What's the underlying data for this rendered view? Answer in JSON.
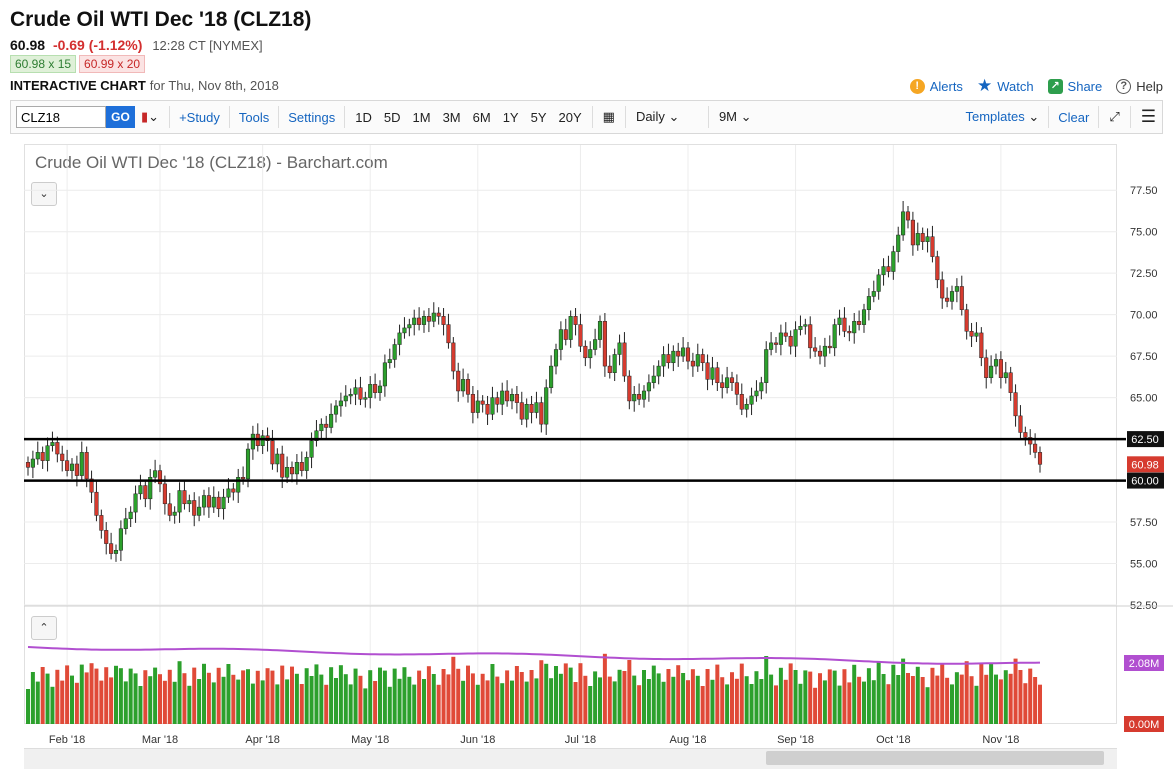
{
  "header": {
    "title": "Crude Oil WTI Dec '18 (CLZ18)",
    "last": "60.98",
    "change": "-0.69 (-1.12%)",
    "time": "12:28 CT [NYMEX]",
    "bid": "60.98 x 15",
    "ask": "60.99 x 20",
    "interactive_label": "INTERACTIVE CHART",
    "interactive_date": "for Thu, Nov 8th, 2018",
    "links": {
      "alerts": "Alerts",
      "watch": "Watch",
      "share": "Share",
      "help": "Help"
    }
  },
  "toolbar": {
    "symbol": "CLZ18",
    "go": "GO",
    "study": "+Study",
    "tools": "Tools",
    "settings": "Settings",
    "periods": [
      "1D",
      "5D",
      "1M",
      "3M",
      "6M",
      "1Y",
      "5Y",
      "20Y"
    ],
    "interval": "Daily",
    "range": "9M",
    "templates": "Templates",
    "clear": "Clear"
  },
  "chart_data": {
    "type": "candlestick",
    "title": "Crude Oil WTI Dec '18 (CLZ18) - Barchart.com",
    "y_ticks": [
      "52.50",
      "55.00",
      "57.50",
      "60.00",
      "62.50",
      "65.00",
      "67.50",
      "70.00",
      "72.50",
      "75.00",
      "77.50"
    ],
    "ylim": [
      52.5,
      78.9
    ],
    "x_ticks": [
      "Feb '18",
      "Mar '18",
      "Apr '18",
      "May '18",
      "Jun '18",
      "Jul '18",
      "Aug '18",
      "Sep '18",
      "Oct '18",
      "Nov '18"
    ],
    "x_tick_index": [
      8,
      27,
      48,
      70,
      92,
      113,
      135,
      157,
      177,
      199
    ],
    "grid": true,
    "horizontal_lines": [
      {
        "value": 62.5,
        "label": "62.50"
      },
      {
        "value": 60.0,
        "label": "60.00"
      }
    ],
    "last_price_label": "60.98",
    "closes": [
      60.8,
      61.3,
      61.7,
      61.2,
      62.1,
      62.3,
      61.6,
      61.2,
      60.6,
      61.0,
      60.3,
      61.7,
      60.1,
      59.3,
      57.9,
      57.0,
      56.2,
      55.6,
      55.8,
      57.1,
      57.7,
      58.1,
      59.2,
      59.7,
      58.9,
      60.2,
      60.6,
      59.8,
      58.6,
      57.9,
      58.1,
      59.4,
      58.6,
      58.8,
      57.9,
      58.4,
      59.1,
      58.4,
      59.0,
      58.3,
      59.0,
      59.5,
      59.3,
      60.2,
      60.1,
      61.9,
      62.8,
      62.1,
      62.7,
      62.4,
      61.0,
      61.6,
      60.2,
      60.8,
      60.4,
      61.1,
      60.6,
      61.4,
      62.4,
      63.0,
      63.4,
      63.2,
      64.0,
      64.5,
      64.8,
      65.1,
      65.2,
      65.6,
      64.9,
      65.0,
      65.8,
      65.3,
      65.7,
      67.1,
      67.3,
      68.2,
      68.9,
      69.2,
      69.4,
      69.8,
      69.4,
      69.9,
      69.6,
      70.1,
      69.9,
      69.4,
      68.3,
      66.6,
      65.4,
      66.1,
      65.2,
      64.1,
      64.8,
      64.6,
      64.0,
      65.0,
      64.6,
      65.4,
      64.8,
      65.2,
      64.7,
      63.7,
      64.6,
      64.1,
      64.7,
      63.4,
      65.6,
      66.9,
      67.9,
      69.1,
      68.5,
      69.9,
      69.4,
      68.1,
      67.4,
      67.9,
      68.5,
      69.6,
      66.9,
      66.5,
      67.6,
      68.3,
      66.3,
      64.8,
      65.2,
      64.9,
      65.4,
      65.9,
      66.3,
      66.9,
      67.6,
      67.1,
      67.8,
      67.5,
      68.0,
      67.2,
      66.9,
      67.6,
      67.1,
      66.1,
      66.8,
      65.9,
      65.6,
      66.2,
      65.9,
      65.2,
      64.3,
      64.6,
      65.1,
      65.4,
      65.9,
      67.9,
      68.3,
      68.2,
      68.9,
      68.7,
      68.1,
      69.1,
      69.3,
      69.4,
      68.0,
      67.8,
      67.5,
      68.1,
      68.0,
      69.4,
      69.8,
      69.0,
      68.9,
      69.6,
      69.4,
      70.3,
      71.1,
      71.4,
      72.4,
      72.9,
      72.6,
      73.8,
      74.8,
      76.2,
      75.7,
      74.2,
      74.9,
      74.4,
      74.7,
      73.5,
      72.1,
      71.0,
      70.8,
      71.4,
      71.7,
      70.3,
      69.0,
      68.7,
      68.9,
      67.4,
      66.2,
      66.9,
      67.3,
      66.2,
      66.5,
      65.3,
      63.9,
      62.9,
      62.6,
      62.2,
      61.7,
      60.98
    ]
  },
  "volume": {
    "axis_labels": [
      "2.08M",
      "0.00M"
    ]
  }
}
